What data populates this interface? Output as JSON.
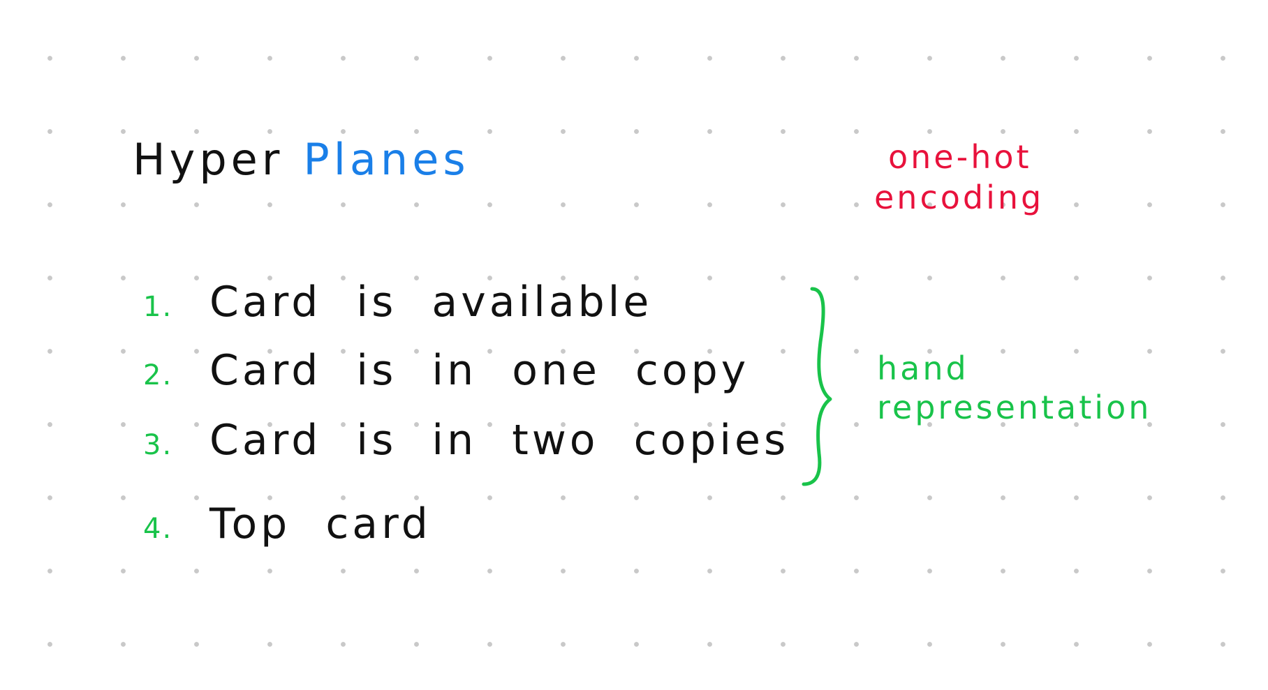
{
  "title": {
    "part1": "Hyper",
    "part2": "Planes"
  },
  "annotation_top": {
    "line1": "one-hot",
    "line2": "encoding"
  },
  "items": [
    {
      "number": "1.",
      "text": "Card is available"
    },
    {
      "number": "2.",
      "text": "Card is in one copy"
    },
    {
      "number": "3.",
      "text": "Card is in two copies"
    },
    {
      "number": "4.",
      "text": "Top card"
    }
  ],
  "annotation_brace": {
    "line1": "hand",
    "line2": "representation"
  },
  "colors": {
    "ink": "#111111",
    "blue": "#1a7fe8",
    "red": "#e8123c",
    "green": "#19c34a",
    "dots": "#c9c9c9"
  }
}
